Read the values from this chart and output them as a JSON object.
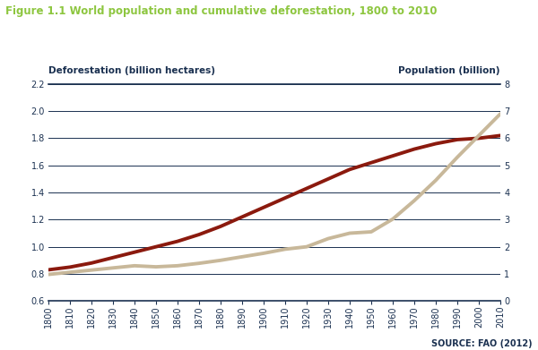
{
  "title": "Figure 1.1 World population and cumulative deforestation, 1800 to 2010",
  "title_color": "#8dc63f",
  "label_left": "Deforestation (billion hectares)",
  "label_right": "Population (billion)",
  "source": "SOURCE: FAO (2012)",
  "years": [
    1800,
    1810,
    1820,
    1830,
    1840,
    1850,
    1860,
    1870,
    1880,
    1890,
    1900,
    1910,
    1920,
    1930,
    1940,
    1950,
    1960,
    1970,
    1980,
    1990,
    2000,
    2010
  ],
  "deforestation": [
    0.83,
    0.85,
    0.88,
    0.92,
    0.96,
    1.0,
    1.04,
    1.09,
    1.15,
    1.22,
    1.29,
    1.36,
    1.43,
    1.5,
    1.57,
    1.62,
    1.67,
    1.72,
    1.76,
    1.79,
    1.8,
    1.82
  ],
  "population": [
    0.98,
    1.06,
    1.14,
    1.22,
    1.3,
    1.26,
    1.3,
    1.39,
    1.5,
    1.63,
    1.76,
    1.91,
    2.0,
    2.3,
    2.5,
    2.55,
    3.02,
    3.7,
    4.45,
    5.3,
    6.1,
    6.9
  ],
  "defor_color": "#8b1a0e",
  "pop_color": "#c8b89a",
  "background_color": "#ffffff",
  "grid_color": "#1a3050",
  "tick_label_color": "#1a3050",
  "left_ylim": [
    0.6,
    2.2
  ],
  "right_ylim": [
    0,
    8
  ],
  "left_yticks": [
    0.6,
    0.8,
    1.0,
    1.2,
    1.4,
    1.6,
    1.8,
    2.0,
    2.2
  ],
  "right_yticks": [
    0,
    1,
    2,
    3,
    4,
    5,
    6,
    7,
    8
  ],
  "title_fontsize": 8.5,
  "axis_label_fontsize": 7.5,
  "tick_fontsize": 7,
  "source_fontsize": 7
}
